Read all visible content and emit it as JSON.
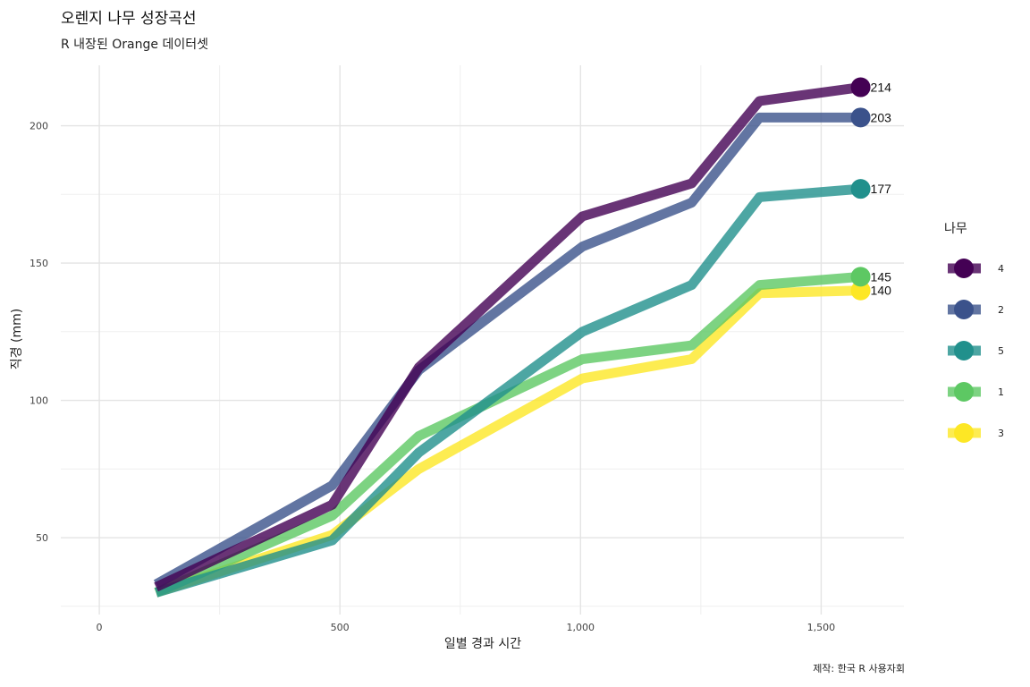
{
  "title": "오렌지 나무 성장곡선",
  "subtitle": "R 내장된 Orange 데이터셋",
  "caption": "제작: 한국 R 사용자회",
  "chart_data": {
    "type": "line",
    "xlabel": "일별 경과 시간",
    "ylabel": "직경 (mm)",
    "xlim": [
      -80,
      1672
    ],
    "ylim": [
      22,
      222
    ],
    "x_ticks": [
      0,
      500,
      1000,
      1500
    ],
    "x_tick_labels": [
      "0",
      "500",
      "1,000",
      "1,500"
    ],
    "y_ticks": [
      50,
      100,
      150,
      200
    ],
    "y_tick_labels": [
      "50",
      "100",
      "150",
      "200"
    ],
    "grid": true,
    "legend": {
      "title": "나무",
      "position": "right"
    },
    "x": [
      118,
      484,
      664,
      1004,
      1231,
      1372,
      1582
    ],
    "series": [
      {
        "name": "4",
        "color": "#440154",
        "values": [
          32,
          62,
          112,
          167,
          179,
          209,
          214
        ],
        "end_label": "214"
      },
      {
        "name": "2",
        "color": "#3B528B",
        "values": [
          33,
          69,
          111,
          156,
          172,
          203,
          203
        ],
        "end_label": "203"
      },
      {
        "name": "5",
        "color": "#21908C",
        "values": [
          30,
          49,
          81,
          125,
          142,
          174,
          177
        ],
        "end_label": "177"
      },
      {
        "name": "1",
        "color": "#5DC863",
        "values": [
          30,
          58,
          87,
          115,
          120,
          142,
          145
        ],
        "end_label": "145"
      },
      {
        "name": "3",
        "color": "#FDE725",
        "values": [
          30,
          51,
          75,
          108,
          115,
          139,
          140
        ],
        "end_label": "140"
      }
    ]
  }
}
